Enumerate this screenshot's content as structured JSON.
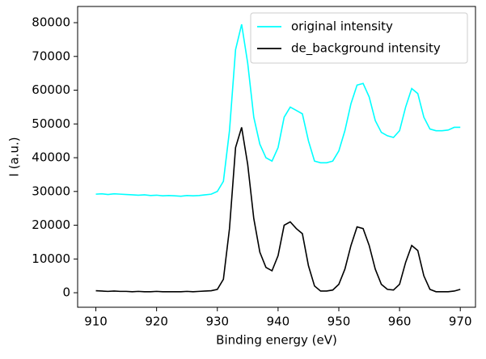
{
  "chart_data": {
    "type": "line",
    "xlabel": "Binding energy (eV)",
    "ylabel": "I (a.u.)",
    "x": [
      910,
      911,
      912,
      913,
      914,
      915,
      916,
      917,
      918,
      919,
      920,
      921,
      922,
      923,
      924,
      925,
      926,
      927,
      928,
      929,
      930,
      931,
      932,
      933,
      934,
      935,
      936,
      937,
      938,
      939,
      940,
      941,
      942,
      943,
      944,
      945,
      946,
      947,
      948,
      949,
      950,
      951,
      952,
      953,
      954,
      955,
      956,
      957,
      958,
      959,
      960,
      961,
      962,
      963,
      964,
      965,
      966,
      967,
      968,
      969,
      970
    ],
    "series": [
      {
        "name": "original intensity",
        "color": "#00ffff",
        "values": [
          29200,
          29300,
          29100,
          29300,
          29200,
          29100,
          29000,
          28900,
          29000,
          28800,
          28900,
          28700,
          28800,
          28700,
          28600,
          28800,
          28700,
          28800,
          29000,
          29200,
          30000,
          33000,
          48000,
          72000,
          79500,
          68000,
          52000,
          44000,
          40000,
          39000,
          43000,
          52000,
          55000,
          54000,
          53000,
          45000,
          39000,
          38500,
          38500,
          39000,
          42000,
          48000,
          56000,
          61500,
          62000,
          58000,
          51000,
          47500,
          46500,
          46000,
          48000,
          55000,
          60500,
          59000,
          52000,
          48500,
          48000,
          48000,
          48200,
          49000,
          49000
        ]
      },
      {
        "name": "de_background intensity",
        "color": "#000000",
        "values": [
          600,
          500,
          400,
          500,
          400,
          400,
          300,
          400,
          300,
          300,
          400,
          300,
          300,
          300,
          300,
          400,
          300,
          400,
          500,
          600,
          1000,
          4000,
          19000,
          43000,
          49000,
          38000,
          22000,
          12000,
          7500,
          6500,
          11000,
          20000,
          21000,
          19000,
          17500,
          8000,
          2000,
          500,
          500,
          800,
          2500,
          7000,
          14000,
          19500,
          19000,
          14000,
          7000,
          2500,
          1000,
          800,
          2500,
          9000,
          14000,
          12500,
          5000,
          1000,
          300,
          300,
          300,
          500,
          1000
        ]
      }
    ],
    "xlim": [
      907,
      972.5
    ],
    "xticks": [
      910,
      920,
      930,
      940,
      950,
      960,
      970
    ],
    "ylim": [
      -4300,
      84800
    ],
    "yticks": [
      0,
      10000,
      20000,
      30000,
      40000,
      50000,
      60000,
      70000,
      80000
    ],
    "legend": "upper right"
  }
}
